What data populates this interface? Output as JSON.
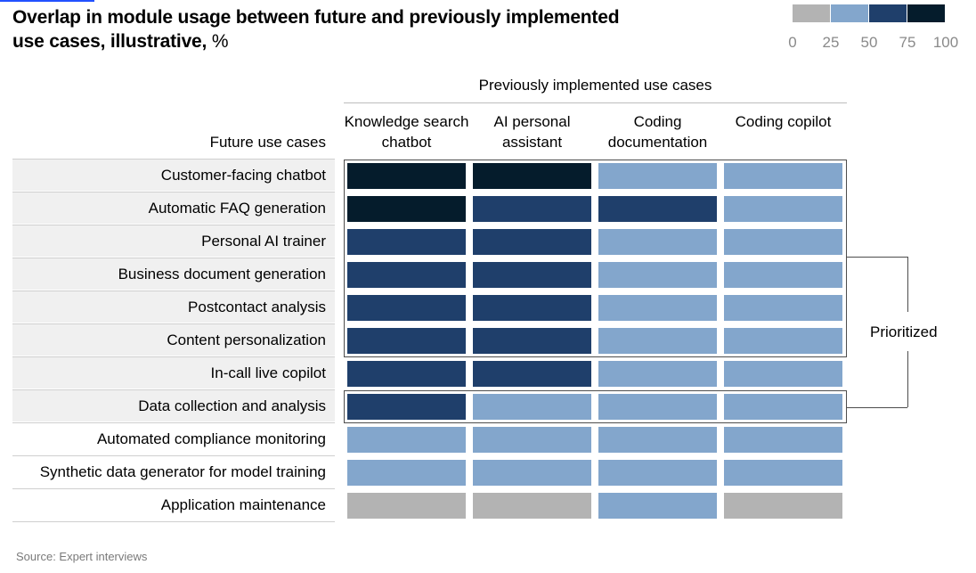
{
  "title": "Overlap in module usage between future and previously implemented use cases, illustrative,",
  "title_unit": "%",
  "legend": {
    "ticks": [
      "0",
      "25",
      "50",
      "75",
      "100"
    ],
    "colors": [
      "#b3b3b3",
      "#83a6cc",
      "#1f3f6b",
      "#051c2c"
    ]
  },
  "column_group_label": "Previously implemented use cases",
  "row_group_label": "Future use cases",
  "bracket_label": "Prioritized",
  "source": "Source: Expert interviews",
  "chart_data": {
    "type": "heatmap",
    "title": "Overlap in module usage between future and previously implemented use cases, illustrative, %",
    "xlabel": "Previously implemented use cases",
    "ylabel": "Future use cases",
    "x_categories": [
      "Knowledge search chatbot",
      "AI personal assistant",
      "Coding documentation",
      "Coding copilot"
    ],
    "y_categories": [
      "Customer-facing chatbot",
      "Automatic FAQ generation",
      "Personal AI trainer",
      "Business document generation",
      "Postcontact analysis",
      "Content personalization",
      "In-call live copilot",
      "Data collection and analysis",
      "Automated compliance monitoring",
      "Synthetic data generator for model training",
      "Application maintenance"
    ],
    "bins": [
      "0-25",
      "25-50",
      "50-75",
      "75-100"
    ],
    "values_bin_index": [
      [
        3,
        3,
        1,
        1
      ],
      [
        3,
        2,
        2,
        1
      ],
      [
        2,
        2,
        1,
        1
      ],
      [
        2,
        2,
        1,
        1
      ],
      [
        2,
        2,
        1,
        1
      ],
      [
        2,
        2,
        1,
        1
      ],
      [
        2,
        2,
        1,
        1
      ],
      [
        2,
        1,
        1,
        1
      ],
      [
        1,
        1,
        1,
        1
      ],
      [
        1,
        1,
        1,
        1
      ],
      [
        0,
        0,
        1,
        0
      ]
    ],
    "legend_range": [
      0,
      100
    ],
    "prioritized_rows": [
      "Customer-facing chatbot",
      "Automatic FAQ generation",
      "Personal AI trainer",
      "Business document generation",
      "Postcontact analysis",
      "Content personalization",
      "Data collection and analysis"
    ]
  }
}
